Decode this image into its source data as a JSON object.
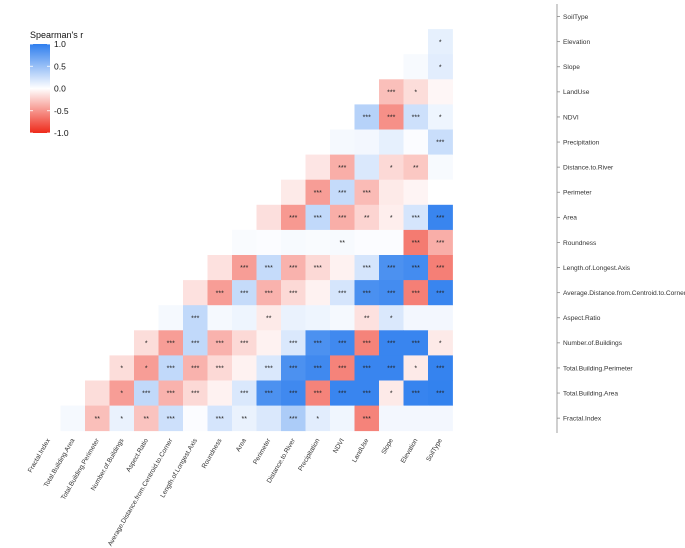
{
  "chart_data": {
    "type": "heatmap",
    "subtype": "lower-triangle correlation matrix",
    "legend": {
      "title": "Spearman's r",
      "ticks": [
        "1.0",
        "0.5",
        "0.0",
        "-0.5",
        "-1.0"
      ],
      "range": [
        -1,
        1
      ],
      "placement": "top-left"
    },
    "colors": {
      "positive": "#2f7fee",
      "neutral": "#ffffff",
      "negative": "#ee2a1a"
    },
    "variables": [
      "Fractal.Index",
      "Total.Building.Area",
      "Total.Building.Perimeter",
      "Number.of.Buildings",
      "Aspect.Ratio",
      "Average.Distance.from.Centroid.to.Corner",
      "Length.of.Longest.Axis",
      "Roundness",
      "Area",
      "Perimeter",
      "Distance.to.River",
      "Precipitation",
      "NDVI",
      "LandUse",
      "Slope",
      "Elevation",
      "SoilType"
    ],
    "rows": [
      {
        "label": "SoilType",
        "values": [],
        "sig": []
      },
      {
        "label": "Elevation",
        "values": [
          0.12
        ],
        "sig": [
          "*"
        ]
      },
      {
        "label": "Slope",
        "values": [
          0.04,
          0.14
        ],
        "sig": [
          "",
          "*"
        ]
      },
      {
        "label": "LandUse",
        "values": [
          -0.3,
          -0.16,
          -0.04
        ],
        "sig": [
          "***",
          "*",
          ""
        ]
      },
      {
        "label": "NDVI",
        "values": [
          0.35,
          -0.52,
          0.24,
          0.08
        ],
        "sig": [
          "***",
          "***",
          "***",
          "*"
        ]
      },
      {
        "label": "Precipitation",
        "values": [
          0.05,
          0.06,
          0.12,
          0.02,
          0.26
        ],
        "sig": [
          "",
          "",
          "",
          "",
          "***"
        ]
      },
      {
        "label": "Distance.to.River",
        "values": [
          -0.12,
          -0.38,
          0.18,
          -0.18,
          -0.26,
          0.04
        ],
        "sig": [
          "",
          "***",
          "",
          "*",
          "**",
          ""
        ]
      },
      {
        "label": "Perimeter",
        "values": [
          -0.1,
          -0.46,
          0.28,
          -0.32,
          -0.1,
          -0.05,
          0.0
        ],
        "sig": [
          "",
          "***",
          "***",
          "***",
          "",
          "",
          ""
        ]
      },
      {
        "label": "Area",
        "values": [
          -0.15,
          -0.48,
          0.3,
          -0.38,
          -0.2,
          -0.08,
          0.2,
          0.95
        ],
        "sig": [
          "",
          "***",
          "***",
          "***",
          "**",
          "*",
          "***",
          "***"
        ]
      },
      {
        "label": "Roundness",
        "values": [
          0.03,
          0.02,
          0.04,
          0.03,
          0.04,
          0.02,
          0.02,
          -0.62,
          -0.38
        ],
        "sig": [
          "",
          "",
          "",
          "",
          "**",
          "",
          "",
          "***",
          "***"
        ]
      },
      {
        "label": "Length.of.Longest.Axis",
        "values": [
          -0.14,
          -0.46,
          0.28,
          -0.36,
          -0.18,
          -0.06,
          0.2,
          0.86,
          0.9,
          -0.6
        ],
        "sig": [
          "",
          "***",
          "***",
          "***",
          "***",
          "",
          "***",
          "***",
          "***",
          "***"
        ]
      },
      {
        "label": "Average.Distance.from.Centroid.to.Corner",
        "values": [
          -0.14,
          -0.46,
          0.28,
          -0.36,
          -0.18,
          -0.06,
          0.2,
          0.87,
          0.9,
          -0.6,
          0.95
        ],
        "sig": [
          "",
          "***",
          "***",
          "***",
          "***",
          "",
          "***",
          "***",
          "***",
          "***",
          "***"
        ]
      },
      {
        "label": "Aspect.Ratio",
        "values": [
          0.05,
          0.3,
          0.05,
          0.08,
          -0.1,
          0.1,
          0.08,
          0.05,
          -0.14,
          0.18,
          0.06,
          0.06
        ],
        "sig": [
          "",
          "***",
          "",
          "",
          "**",
          "",
          "",
          "",
          "**",
          "*",
          "",
          ""
        ]
      },
      {
        "label": "Number.of.Buildings",
        "values": [
          -0.16,
          -0.46,
          0.3,
          -0.36,
          -0.18,
          -0.06,
          0.18,
          0.86,
          0.92,
          -0.58,
          0.95,
          0.95,
          -0.1
        ],
        "sig": [
          "*",
          "***",
          "***",
          "***",
          "***",
          "",
          "***",
          "***",
          "***",
          "***",
          "***",
          "***",
          "*"
        ]
      },
      {
        "label": "Total.Building.Perimeter",
        "values": [
          -0.16,
          -0.46,
          0.3,
          -0.36,
          -0.18,
          -0.06,
          0.18,
          0.86,
          0.92,
          -0.58,
          0.95,
          0.95,
          -0.1,
          0.97
        ],
        "sig": [
          "*",
          "*",
          "***",
          "***",
          "***",
          "",
          "***",
          "***",
          "***",
          "***",
          "***",
          "***",
          "*",
          "***"
        ]
      },
      {
        "label": "Total.Building.Area",
        "values": [
          -0.16,
          -0.46,
          0.3,
          -0.36,
          -0.18,
          -0.06,
          0.18,
          0.86,
          0.92,
          -0.58,
          0.95,
          0.95,
          -0.1,
          0.96,
          0.98
        ],
        "sig": [
          "",
          "*",
          "***",
          "***",
          "***",
          "",
          "***",
          "***",
          "***",
          "***",
          "***",
          "***",
          "*",
          "***",
          "***"
        ]
      },
      {
        "label": "Fractal.Index",
        "values": [
          0.05,
          -0.3,
          0.1,
          -0.28,
          0.24,
          0.02,
          0.2,
          0.1,
          0.18,
          0.4,
          0.14,
          0.07,
          -0.58,
          0.06,
          0.06,
          0.06
        ],
        "sig": [
          "",
          "**",
          "*",
          "**",
          "***",
          "",
          "***",
          "**",
          "",
          "***",
          "*",
          "",
          "***",
          "",
          "",
          ""
        ]
      }
    ]
  }
}
